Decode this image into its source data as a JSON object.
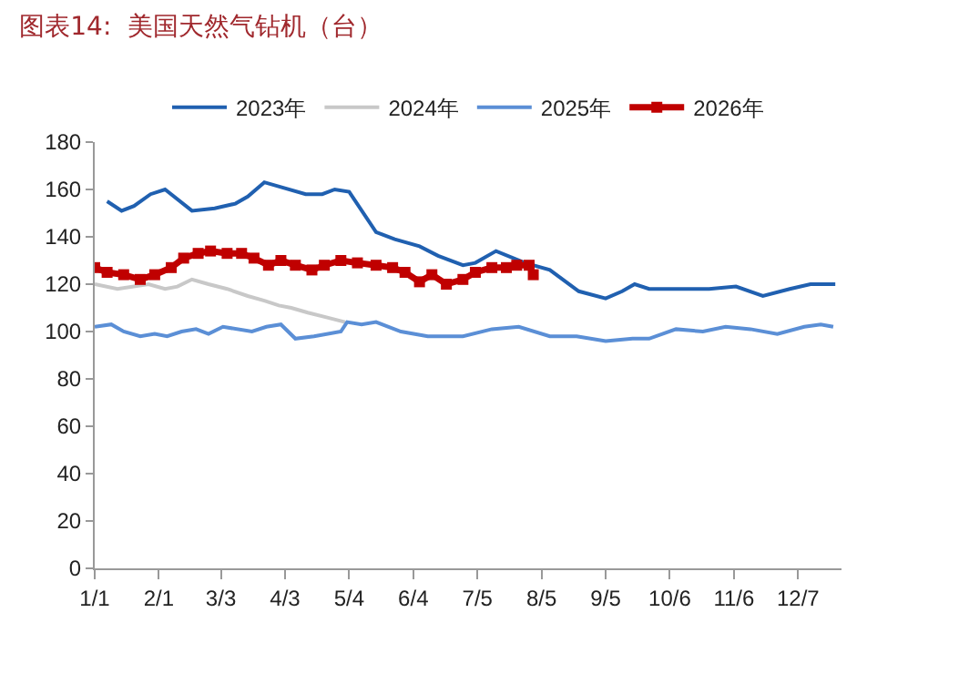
{
  "chart_data": {
    "type": "line",
    "title": "图表14:  美国天然气钻机（台）",
    "legend": "top",
    "grid": false,
    "xlim": [
      "--01-01",
      "--12-28"
    ],
    "xticks": [
      {
        "value": "--01-01",
        "label": "1/1"
      },
      {
        "value": "--02-01",
        "label": "2/1"
      },
      {
        "value": "--03-03",
        "label": "3/3"
      },
      {
        "value": "--04-03",
        "label": "4/3"
      },
      {
        "value": "--05-04",
        "label": "5/4"
      },
      {
        "value": "--06-04",
        "label": "6/4"
      },
      {
        "value": "--07-05",
        "label": "7/5"
      },
      {
        "value": "--08-05",
        "label": "8/5"
      },
      {
        "value": "--09-05",
        "label": "9/5"
      },
      {
        "value": "--10-06",
        "label": "10/6"
      },
      {
        "value": "--11-06",
        "label": "11/6"
      },
      {
        "value": "--12-07",
        "label": "12/7"
      }
    ],
    "ylim": [
      0,
      180
    ],
    "yticks": [
      0,
      20,
      40,
      60,
      80,
      100,
      120,
      140,
      160,
      180
    ],
    "series": [
      {
        "name": "2023年",
        "color": "#2060b0",
        "marker": "none",
        "x": [
          "--01-07",
          "--01-14",
          "--01-20",
          "--01-28",
          "--02-04",
          "--02-17",
          "--02-28",
          "--03-10",
          "--03-16",
          "--03-24",
          "--04-01",
          "--04-13",
          "--04-21",
          "--04-27",
          "--05-04",
          "--05-17",
          "--05-26",
          "--06-07",
          "--06-16",
          "--06-28",
          "--07-04",
          "--07-14",
          "--07-28",
          "--08-09",
          "--08-23",
          "--09-05",
          "--09-13",
          "--09-19",
          "--09-26",
          "--10-09",
          "--10-25",
          "--11-07",
          "--11-20",
          "--12-03",
          "--12-13",
          "--12-25"
        ],
        "values": [
          155,
          151,
          153,
          158,
          160,
          151,
          152,
          154,
          157,
          163,
          161,
          158,
          158,
          160,
          159,
          142,
          139,
          136,
          132,
          128,
          129,
          134,
          129,
          126,
          117,
          114,
          117,
          120,
          118,
          118,
          118,
          119,
          115,
          118,
          120,
          120
        ]
      },
      {
        "name": "2024年",
        "color": "#c8c8c8",
        "marker": "none",
        "x": [
          "--01-01",
          "--01-12",
          "--01-27",
          "--02-04",
          "--02-10",
          "--02-17",
          "--02-25",
          "--03-06",
          "--03-16",
          "--03-24",
          "--03-31",
          "--04-06",
          "--04-14",
          "--04-23",
          "--05-02"
        ],
        "values": [
          120,
          118,
          120,
          118,
          119,
          122,
          120,
          118,
          115,
          113,
          111,
          110,
          108,
          106,
          104
        ]
      },
      {
        "name": "2025年",
        "color": "#5b8fd6",
        "marker": "none",
        "x": [
          "--01-01",
          "--01-09",
          "--01-15",
          "--01-23",
          "--01-30",
          "--02-05",
          "--02-12",
          "--02-19",
          "--02-25",
          "--03-04",
          "--03-18",
          "--03-25",
          "--04-01",
          "--04-08",
          "--04-17",
          "--04-30",
          "--05-03",
          "--05-10",
          "--05-17",
          "--05-29",
          "--06-11",
          "--06-28",
          "--07-12",
          "--07-25",
          "--08-09",
          "--08-22",
          "--09-05",
          "--09-18",
          "--09-26",
          "--10-09",
          "--10-22",
          "--11-02",
          "--11-14",
          "--11-27",
          "--12-10",
          "--12-18",
          "--12-24"
        ],
        "values": [
          102,
          103,
          100,
          98,
          99,
          98,
          100,
          101,
          99,
          102,
          100,
          102,
          103,
          97,
          98,
          100,
          104,
          103,
          104,
          100,
          98,
          98,
          101,
          102,
          98,
          98,
          96,
          97,
          97,
          101,
          100,
          102,
          101,
          99,
          102,
          103,
          102
        ]
      },
      {
        "name": "2026年",
        "color": "#c00000",
        "marker": "square",
        "x": [
          "--01-01",
          "--01-07",
          "--01-15",
          "--01-23",
          "--01-30",
          "--02-07",
          "--02-13",
          "--02-20",
          "--02-26",
          "--03-06",
          "--03-13",
          "--03-19",
          "--03-26",
          "--04-01",
          "--04-08",
          "--04-16",
          "--04-22",
          "--04-30",
          "--05-08",
          "--05-17",
          "--05-25",
          "--05-31",
          "--06-07",
          "--06-13",
          "--06-20",
          "--06-28",
          "--07-04",
          "--07-12",
          "--07-19",
          "--07-24",
          "--07-30",
          "--08-01"
        ],
        "values": [
          127,
          125,
          124,
          122,
          124,
          127,
          131,
          133,
          134,
          133,
          133,
          131,
          128,
          130,
          128,
          126,
          128,
          130,
          129,
          128,
          127,
          125,
          121,
          124,
          120,
          122,
          125,
          127,
          127,
          128,
          128,
          124
        ]
      }
    ]
  }
}
